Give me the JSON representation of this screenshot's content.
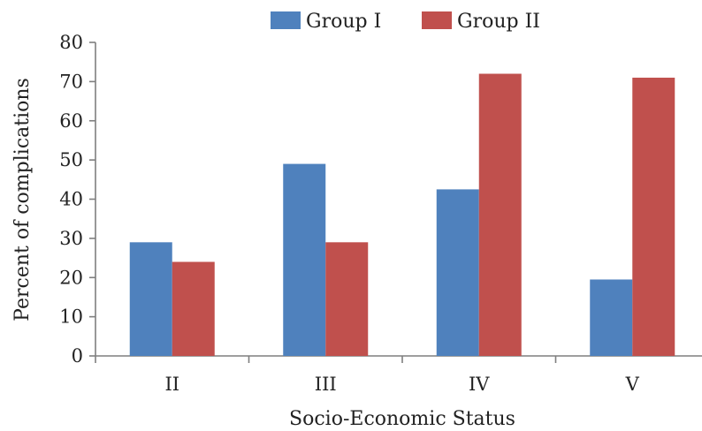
{
  "chart_data": {
    "type": "bar",
    "title": "",
    "xlabel": "Socio-Economic Status",
    "ylabel": "Percent of complications",
    "categories": [
      "II",
      "III",
      "IV",
      "V"
    ],
    "series": [
      {
        "name": "Group I",
        "values": [
          29,
          49,
          42.5,
          19.5
        ],
        "color": "#4f81bd"
      },
      {
        "name": "Group II",
        "values": [
          24,
          29,
          72,
          71
        ],
        "color": "#c0504d"
      }
    ],
    "ylim": [
      0,
      80
    ],
    "yticks": [
      0,
      10,
      20,
      30,
      40,
      50,
      60,
      70,
      80
    ],
    "grid": false,
    "legend_position": "top"
  }
}
